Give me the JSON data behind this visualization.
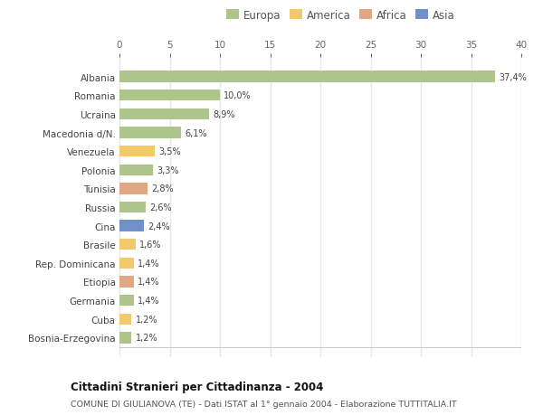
{
  "countries": [
    "Albania",
    "Romania",
    "Ucraina",
    "Macedonia d/N.",
    "Venezuela",
    "Polonia",
    "Tunisia",
    "Russia",
    "Cina",
    "Brasile",
    "Rep. Dominicana",
    "Etiopia",
    "Germania",
    "Cuba",
    "Bosnia-Erzegovina"
  ],
  "values": [
    37.4,
    10.0,
    8.9,
    6.1,
    3.5,
    3.3,
    2.8,
    2.6,
    2.4,
    1.6,
    1.4,
    1.4,
    1.4,
    1.2,
    1.2
  ],
  "labels": [
    "37,4%",
    "10,0%",
    "8,9%",
    "6,1%",
    "3,5%",
    "3,3%",
    "2,8%",
    "2,6%",
    "2,4%",
    "1,6%",
    "1,4%",
    "1,4%",
    "1,4%",
    "1,2%",
    "1,2%"
  ],
  "continents": [
    "Europa",
    "Europa",
    "Europa",
    "Europa",
    "America",
    "Europa",
    "Africa",
    "Europa",
    "Asia",
    "America",
    "America",
    "Africa",
    "Europa",
    "America",
    "Europa"
  ],
  "continent_colors": {
    "Europa": "#adc48a",
    "America": "#f2c96a",
    "Africa": "#e0a882",
    "Asia": "#7090c8"
  },
  "legend_order": [
    "Europa",
    "America",
    "Africa",
    "Asia"
  ],
  "title": "Cittadini Stranieri per Cittadinanza - 2004",
  "subtitle": "COMUNE DI GIULIANOVA (TE) - Dati ISTAT al 1° gennaio 2004 - Elaborazione TUTTITALIA.IT",
  "xlim": [
    0,
    40
  ],
  "xticks": [
    0,
    5,
    10,
    15,
    20,
    25,
    30,
    35,
    40
  ],
  "background_color": "#ffffff",
  "plot_bg_color": "#ffffff",
  "grid_color": "#e8e8e8",
  "bar_height": 0.6
}
